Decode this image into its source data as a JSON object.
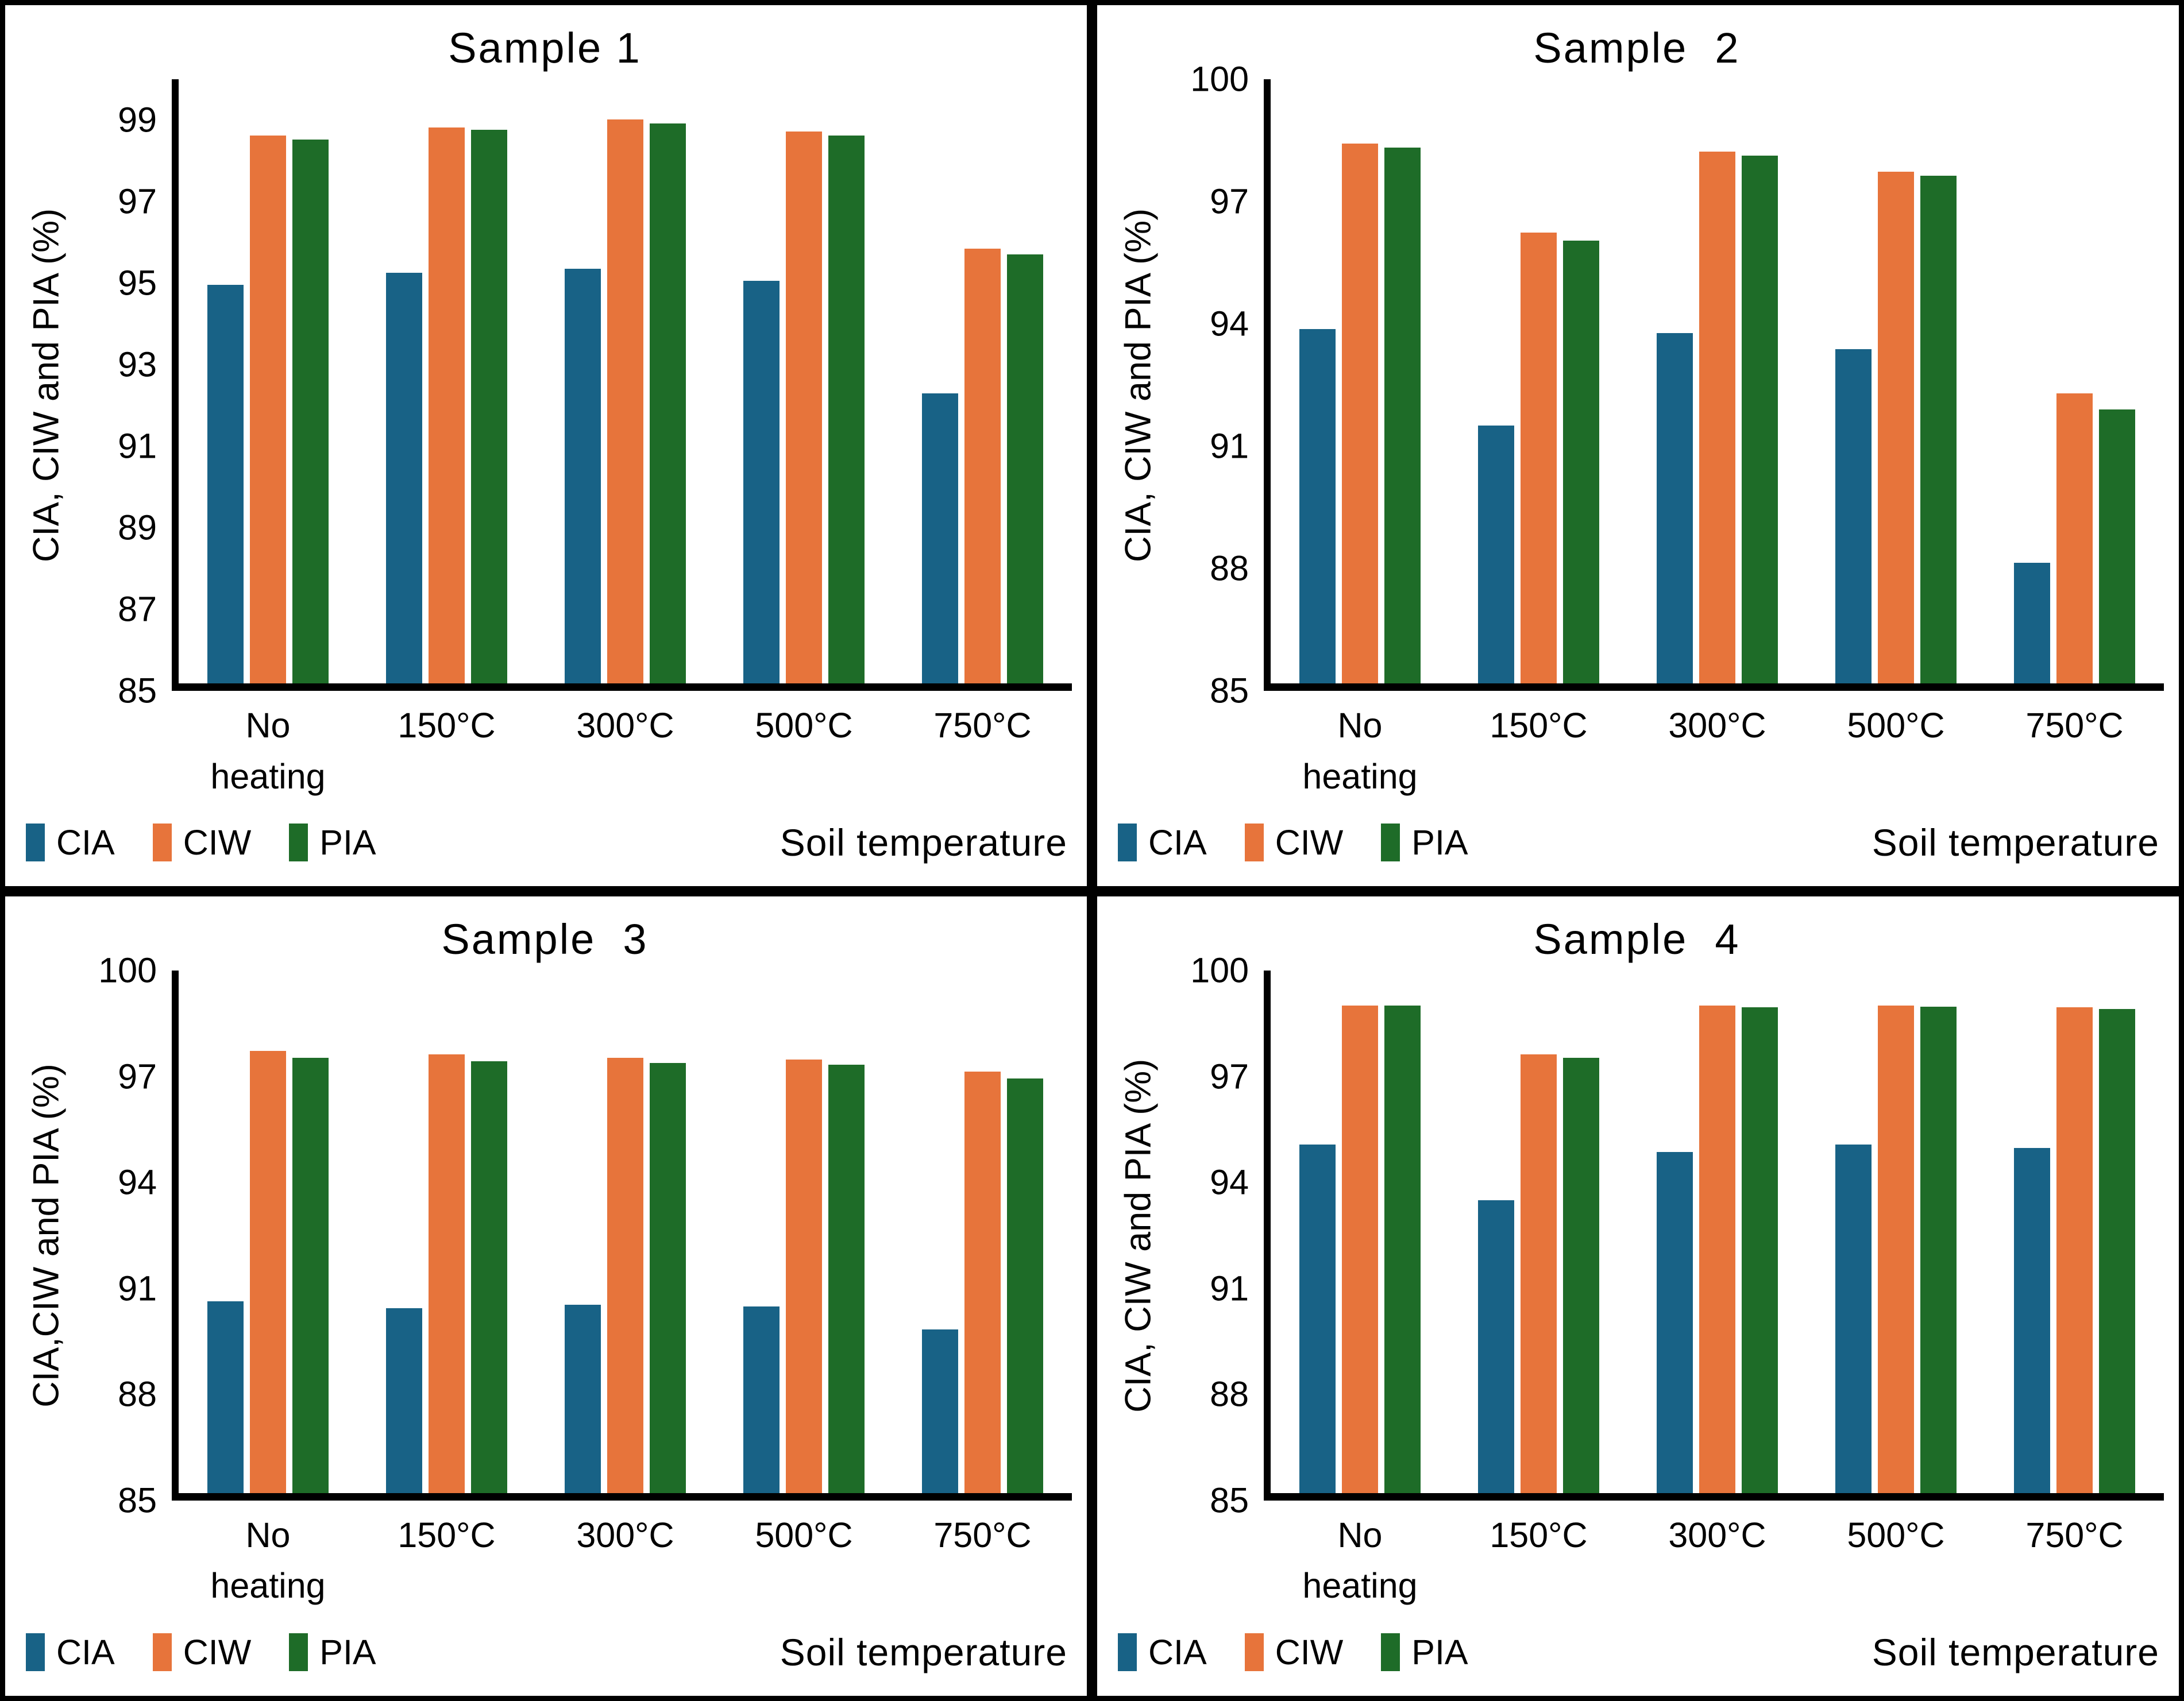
{
  "figure": {
    "background": "#ffffff",
    "panel_border_color": "#000000"
  },
  "series_colors": {
    "CIA": "#186286",
    "CIW": "#E7743B",
    "PIA": "#1E6C28"
  },
  "chart_data": [
    {
      "type": "bar",
      "title": "Sample 1",
      "ylabel": "CIA, CIW and PIA (%)",
      "xlabel": "Soil temperature",
      "ylim": [
        85,
        100
      ],
      "yticks": [
        99,
        97,
        95,
        93,
        91,
        89,
        87,
        85
      ],
      "grid": false,
      "legend": [
        "CIA",
        "CIW",
        "PIA"
      ],
      "legend_position": "bottom-left",
      "categories": [
        "No heating",
        "150°C",
        "300°C",
        "500°C",
        "750°C"
      ],
      "categories_lines": [
        [
          "No",
          "heating"
        ],
        [
          "150°C"
        ],
        [
          "300°C"
        ],
        [
          "500°C"
        ],
        [
          "750°C"
        ]
      ],
      "series": [
        {
          "name": "CIA",
          "values": [
            94.9,
            95.2,
            95.3,
            95.0,
            92.2
          ]
        },
        {
          "name": "CIW",
          "values": [
            98.6,
            98.8,
            99.0,
            98.7,
            95.8
          ]
        },
        {
          "name": "PIA",
          "values": [
            98.5,
            98.75,
            98.9,
            98.6,
            95.65
          ]
        }
      ]
    },
    {
      "type": "bar",
      "title": "Sample  2",
      "ylabel": "CIA, CIW and PIA (%)",
      "xlabel": "Soil temperature",
      "ylim": [
        85,
        100
      ],
      "yticks": [
        100,
        97,
        94,
        91,
        88,
        85
      ],
      "grid": false,
      "legend": [
        "CIA",
        "CIW",
        "PIA"
      ],
      "legend_position": "bottom-left",
      "categories": [
        "No heating",
        "150°C",
        "300°C",
        "500°C",
        "750°C"
      ],
      "categories_lines": [
        [
          "No",
          "heating"
        ],
        [
          "150°C"
        ],
        [
          "300°C"
        ],
        [
          "500°C"
        ],
        [
          "750°C"
        ]
      ],
      "series": [
        {
          "name": "CIA",
          "values": [
            93.8,
            91.4,
            93.7,
            93.3,
            88.0
          ]
        },
        {
          "name": "CIW",
          "values": [
            98.4,
            96.2,
            98.2,
            97.7,
            92.2
          ]
        },
        {
          "name": "PIA",
          "values": [
            98.3,
            96.0,
            98.1,
            97.6,
            91.8
          ]
        }
      ]
    },
    {
      "type": "bar",
      "title": "Sample  3",
      "ylabel": "CIA,CIW and PIA (%)",
      "xlabel": "Soil temperature",
      "ylim": [
        85,
        100
      ],
      "yticks": [
        100,
        97,
        94,
        91,
        88,
        85
      ],
      "grid": false,
      "legend": [
        "CIA",
        "CIW",
        "PIA"
      ],
      "legend_position": "bottom-left",
      "categories": [
        "No heating",
        "150°C",
        "300°C",
        "500°C",
        "750°C"
      ],
      "categories_lines": [
        [
          "No",
          "heating"
        ],
        [
          "150°C"
        ],
        [
          "300°C"
        ],
        [
          "500°C"
        ],
        [
          "750°C"
        ]
      ],
      "series": [
        {
          "name": "CIA",
          "values": [
            90.5,
            90.3,
            90.4,
            90.35,
            89.7
          ]
        },
        {
          "name": "CIW",
          "values": [
            97.7,
            97.6,
            97.5,
            97.45,
            97.1
          ]
        },
        {
          "name": "PIA",
          "values": [
            97.5,
            97.4,
            97.35,
            97.3,
            96.9
          ]
        }
      ]
    },
    {
      "type": "bar",
      "title": "Sample  4",
      "ylabel": "CIA, CIW and PIA (%)",
      "xlabel": "Soil temperature",
      "ylim": [
        85,
        100
      ],
      "yticks": [
        100,
        97,
        94,
        91,
        88,
        85
      ],
      "grid": false,
      "legend": [
        "CIA",
        "CIW",
        "PIA"
      ],
      "legend_position": "bottom-left",
      "categories": [
        "No heating",
        "150°C",
        "300°C",
        "500°C",
        "750°C"
      ],
      "categories_lines": [
        [
          "No",
          "heating"
        ],
        [
          "150°C"
        ],
        [
          "300°C"
        ],
        [
          "500°C"
        ],
        [
          "750°C"
        ]
      ],
      "series": [
        {
          "name": "CIA",
          "values": [
            95.0,
            93.4,
            94.8,
            95.0,
            94.9
          ]
        },
        {
          "name": "CIW",
          "values": [
            99.0,
            97.6,
            99.0,
            99.0,
            98.95
          ]
        },
        {
          "name": "PIA",
          "values": [
            99.0,
            97.5,
            98.95,
            98.97,
            98.9
          ]
        }
      ]
    }
  ]
}
